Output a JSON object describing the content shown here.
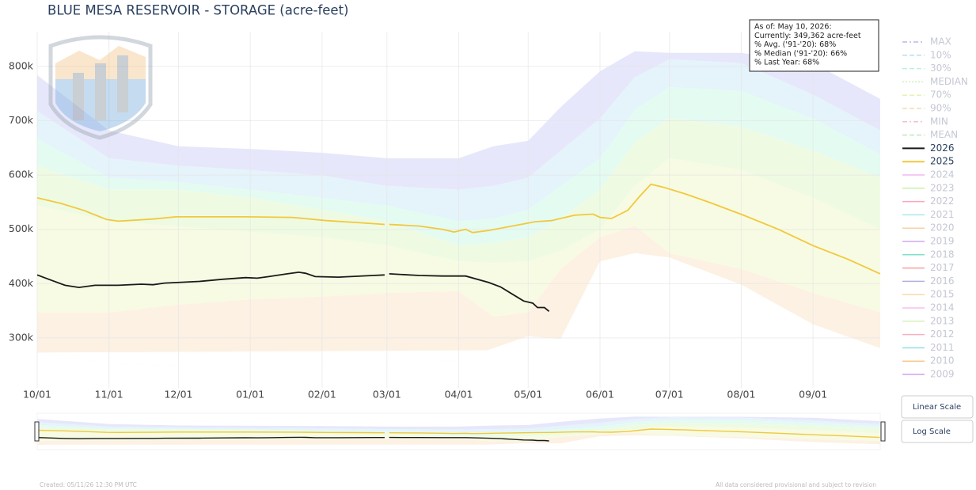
{
  "chart_data": {
    "type": "line",
    "title": "BLUE MESA RESERVOIR - STORAGE (acre-feet)",
    "xlim": [
      0,
      364
    ],
    "xticks": [
      {
        "value": 0,
        "label": "10/01"
      },
      {
        "value": 31,
        "label": "11/01"
      },
      {
        "value": 61,
        "label": "12/01"
      },
      {
        "value": 92,
        "label": "01/01"
      },
      {
        "value": 123,
        "label": "02/01"
      },
      {
        "value": 151,
        "label": "03/01"
      },
      {
        "value": 182,
        "label": "04/01"
      },
      {
        "value": 212,
        "label": "05/01"
      },
      {
        "value": 243,
        "label": "06/01"
      },
      {
        "value": 273,
        "label": "07/01"
      },
      {
        "value": 304,
        "label": "08/01"
      },
      {
        "value": 335,
        "label": "09/01"
      }
    ],
    "ylim": [
      208000,
      864000
    ],
    "yticks": [
      {
        "value": 300000,
        "label": "300k"
      },
      {
        "value": 400000,
        "label": "400k"
      },
      {
        "value": 500000,
        "label": "500k"
      },
      {
        "value": 600000,
        "label": "600k"
      },
      {
        "value": 700000,
        "label": "700k"
      },
      {
        "value": 800000,
        "label": "800k"
      }
    ],
    "grid": true,
    "x": [
      0,
      31,
      61,
      92,
      123,
      151,
      182,
      197,
      212,
      226,
      243,
      258,
      273,
      304,
      335,
      364
    ],
    "bands": [
      {
        "name": "MAX",
        "color": "#b8b8ee",
        "fill": "#e7e7fb",
        "dash": "6,3,2,3",
        "values": [
          784000,
          682000,
          653000,
          648000,
          641000,
          631000,
          631000,
          653000,
          663000,
          725000,
          791000,
          828000,
          825000,
          825000,
          806000,
          740000
        ]
      },
      {
        "name": "10%",
        "color": "#b8def0",
        "fill": "#e5f3fb",
        "dash": "6,3",
        "values": [
          718000,
          631000,
          617000,
          609000,
          599000,
          580000,
          573000,
          580000,
          595000,
          645000,
          704000,
          780000,
          813000,
          806000,
          748000,
          682000
        ]
      },
      {
        "name": "30%",
        "color": "#b8f0e6",
        "fill": "#e4fbf2",
        "dash": "6,3",
        "values": [
          667000,
          595000,
          587000,
          573000,
          558000,
          544000,
          515000,
          520000,
          536000,
          580000,
          631000,
          720000,
          762000,
          755000,
          704000,
          638000
        ]
      },
      {
        "name": "MEDIAN",
        "color": "#cff0c0",
        "fill": "#eefbe2",
        "dash": "2,2",
        "values": [
          617000,
          573000,
          573000,
          558000,
          536000,
          515000,
          470000,
          475000,
          485000,
          520000,
          573000,
          660000,
          704000,
          689000,
          645000,
          595000
        ]
      },
      {
        "name": "70%",
        "color": "#e8f0b0",
        "fill": "#f7fbe3",
        "dash": "6,3",
        "values": [
          544000,
          515000,
          505000,
          495000,
          485000,
          470000,
          441000,
          438000,
          441000,
          460000,
          500000,
          580000,
          631000,
          609000,
          558000,
          500000
        ]
      },
      {
        "name": "90%",
        "color": "#f6dcb0",
        "fill": "#fdf1e3",
        "dash": "6,3",
        "values": [
          347000,
          347000,
          361000,
          371000,
          376000,
          383000,
          386000,
          339000,
          347000,
          427000,
          485000,
          507000,
          456000,
          427000,
          383000,
          347000
        ]
      },
      {
        "name": "MIN",
        "color": "#f0c0d0",
        "fill": "#ffffff",
        "dash": "6,3,2,3",
        "values": [
          273000,
          252000,
          249000,
          249000,
          249000,
          249000,
          259000,
          281000,
          303000,
          298000,
          441000,
          456000,
          448000,
          398000,
          325000,
          281000
        ]
      }
    ],
    "mean": {
      "name": "MEAN",
      "color": "#bfe8c0",
      "dash": "6,3"
    },
    "series": [
      {
        "name": "2026",
        "color": "#1a1a1a",
        "x": [
          0,
          5,
          12,
          18,
          25,
          35,
          45,
          50,
          55,
          70,
          80,
          90,
          95,
          100,
          108,
          113,
          116,
          120,
          130,
          145,
          150,
          151,
          152,
          165,
          175,
          185,
          195,
          200,
          205,
          210,
          214,
          216,
          219,
          221
        ],
        "values": [
          416000,
          408000,
          397000,
          393000,
          397000,
          397000,
          399000,
          398000,
          401000,
          404000,
          408000,
          411000,
          410000,
          413000,
          418000,
          421000,
          419000,
          413000,
          412000,
          415000,
          416000,
          null,
          418000,
          415000,
          414000,
          414000,
          402000,
          394000,
          381000,
          368000,
          364000,
          356000,
          356000,
          349000
        ]
      },
      {
        "name": "2025",
        "color": "#f2c83c",
        "x": [
          0,
          10,
          20,
          30,
          35,
          50,
          60,
          90,
          110,
          125,
          140,
          150,
          151,
          152,
          165,
          175,
          180,
          185,
          188,
          195,
          205,
          215,
          222,
          232,
          240,
          243,
          248,
          255,
          260,
          265,
          270,
          280,
          290,
          305,
          320,
          335,
          350,
          364
        ],
        "values": [
          558000,
          548000,
          535000,
          518000,
          515000,
          519000,
          523000,
          523000,
          522000,
          516000,
          512000,
          509000,
          null,
          509000,
          506000,
          500000,
          495000,
          500000,
          494000,
          498000,
          506000,
          514000,
          516000,
          526000,
          528000,
          522000,
          520000,
          535000,
          560000,
          583000,
          578000,
          565000,
          550000,
          526000,
          500000,
          470000,
          445000,
          418000
        ]
      }
    ],
    "hidden_series": [
      {
        "name": "2024",
        "color": "#f0b8f0"
      },
      {
        "name": "2023",
        "color": "#c8f0a8"
      },
      {
        "name": "2022",
        "color": "#f8a8b8"
      },
      {
        "name": "2021",
        "color": "#a8e8f0"
      },
      {
        "name": "2020",
        "color": "#f8d0a8"
      },
      {
        "name": "2019",
        "color": "#d0a8f0"
      },
      {
        "name": "2018",
        "color": "#80e0c8"
      },
      {
        "name": "2017",
        "color": "#f8a0a0"
      },
      {
        "name": "2016",
        "color": "#b0b0e0"
      },
      {
        "name": "2015",
        "color": "#f8d8a8"
      },
      {
        "name": "2014",
        "color": "#f8c0f0"
      },
      {
        "name": "2013",
        "color": "#d8f0b8"
      },
      {
        "name": "2012",
        "color": "#f8b0c0"
      },
      {
        "name": "2011",
        "color": "#90e0e8"
      },
      {
        "name": "2010",
        "color": "#f8c890"
      },
      {
        "name": "2009",
        "color": "#d0a0f0"
      }
    ],
    "annotation": [
      "As of: May 10, 2026:",
      "Currently: 349,362 acre-feet",
      "% Avg. ('91-'20): 68%",
      "% Median ('91-'20): 66%",
      "% Last Year: 68%"
    ],
    "buttons": [
      "Linear Scale",
      "Log Scale"
    ],
    "footer_left": "Created: 05/11/26 12:30 PM UTC",
    "footer_right": "All data considered provisional and subject to revision"
  }
}
